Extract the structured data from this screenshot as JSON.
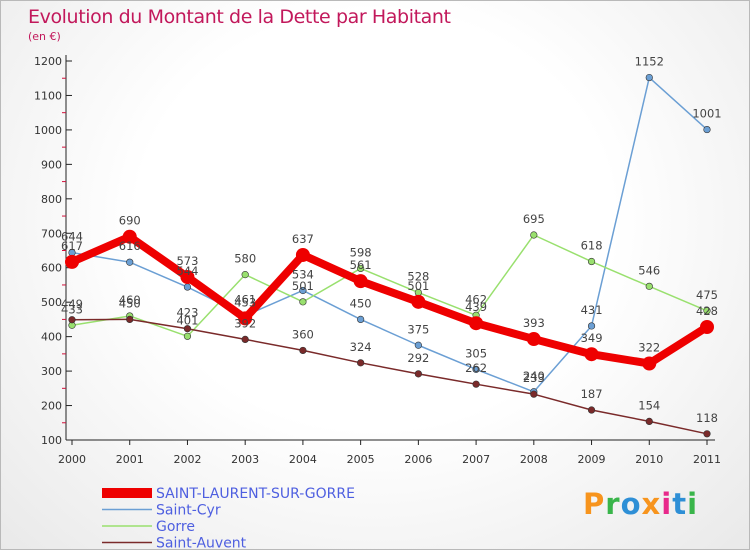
{
  "title": "Evolution du Montant de la Dette par Habitant",
  "subtitle": "(en €)",
  "logo": {
    "text": "Proxiti",
    "colors": [
      "#f7941d",
      "#39b54a",
      "#2e8fd6",
      "#f7941d",
      "#e8298b",
      "#2e8fd6",
      "#39b54a"
    ]
  },
  "chart_data": {
    "type": "line",
    "title": "Evolution du Montant de la Dette par Habitant",
    "subtitle": "(en €)",
    "xlabel": "",
    "ylabel": "",
    "x": [
      2000,
      2001,
      2002,
      2003,
      2004,
      2005,
      2006,
      2007,
      2008,
      2009,
      2010,
      2011
    ],
    "ylim": [
      100,
      1200
    ],
    "yticks": [
      100,
      200,
      300,
      400,
      500,
      600,
      700,
      800,
      900,
      1000,
      1100,
      1200
    ],
    "grid": false,
    "legend": "bottom-left",
    "series": [
      {
        "name": "SAINT-LAURENT-SUR-GORRE",
        "color": "#ee0000",
        "values": [
          617,
          690,
          573,
          453,
          637,
          561,
          501,
          439,
          393,
          349,
          322,
          428
        ]
      },
      {
        "name": "Saint-Cyr",
        "color": "#6b9fd4",
        "values": [
          644,
          616,
          544,
          461,
          534,
          450,
          375,
          305,
          240,
          431,
          1152,
          1001
        ]
      },
      {
        "name": "Gorre",
        "color": "#99e06e",
        "values": [
          433,
          460,
          401,
          580,
          501,
          598,
          528,
          462,
          695,
          618,
          546,
          475
        ]
      },
      {
        "name": "Saint-Auvent",
        "color": "#7a2a2a",
        "values": [
          449,
          450,
          423,
          392,
          360,
          324,
          292,
          262,
          233,
          187,
          154,
          118
        ]
      }
    ]
  }
}
